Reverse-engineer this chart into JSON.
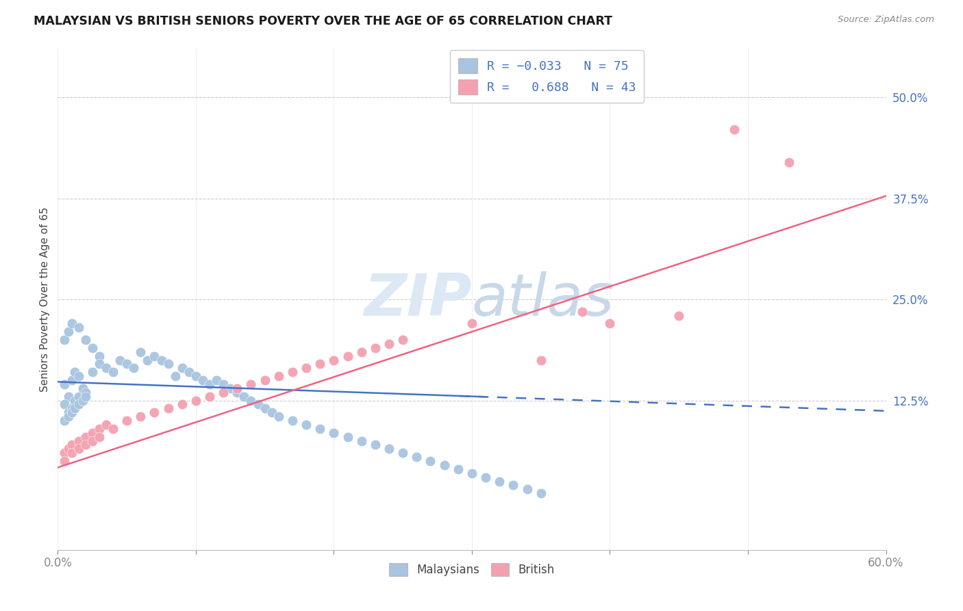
{
  "title": "MALAYSIAN VS BRITISH SENIORS POVERTY OVER THE AGE OF 65 CORRELATION CHART",
  "source": "Source: ZipAtlas.com",
  "ylabel": "Seniors Poverty Over the Age of 65",
  "ytick_labels": [
    "50.0%",
    "37.5%",
    "25.0%",
    "12.5%"
  ],
  "ytick_values": [
    0.5,
    0.375,
    0.25,
    0.125
  ],
  "xlim": [
    0.0,
    0.6
  ],
  "ylim": [
    -0.06,
    0.56
  ],
  "R_malaysian": -0.033,
  "N_malaysian": 75,
  "R_british": 0.688,
  "N_british": 43,
  "color_malaysian": "#a8c4e0",
  "color_british": "#f4a0b0",
  "color_line_malaysian": "#4472c4",
  "color_line_british": "#f06080",
  "watermark_zi": "ZIP",
  "watermark_atlas": "atlas",
  "watermark_color": "#dde8f5",
  "xtick_positions": [
    0.0,
    0.1,
    0.2,
    0.3,
    0.4,
    0.5,
    0.6
  ],
  "malaysian_x": [
    0.005,
    0.008,
    0.01,
    0.012,
    0.015,
    0.018,
    0.02,
    0.005,
    0.008,
    0.01,
    0.012,
    0.015,
    0.018,
    0.02,
    0.005,
    0.008,
    0.01,
    0.012,
    0.015,
    0.018,
    0.02,
    0.005,
    0.008,
    0.01,
    0.015,
    0.02,
    0.025,
    0.03,
    0.025,
    0.03,
    0.035,
    0.04,
    0.045,
    0.05,
    0.055,
    0.06,
    0.065,
    0.07,
    0.075,
    0.08,
    0.085,
    0.09,
    0.095,
    0.1,
    0.105,
    0.11,
    0.115,
    0.12,
    0.125,
    0.13,
    0.135,
    0.14,
    0.145,
    0.15,
    0.155,
    0.16,
    0.17,
    0.18,
    0.19,
    0.2,
    0.21,
    0.22,
    0.23,
    0.24,
    0.25,
    0.26,
    0.27,
    0.28,
    0.29,
    0.3,
    0.31,
    0.32,
    0.33,
    0.34,
    0.35
  ],
  "malaysian_y": [
    0.145,
    0.13,
    0.15,
    0.16,
    0.155,
    0.14,
    0.135,
    0.12,
    0.11,
    0.115,
    0.125,
    0.13,
    0.14,
    0.135,
    0.1,
    0.105,
    0.11,
    0.115,
    0.12,
    0.125,
    0.13,
    0.2,
    0.21,
    0.22,
    0.215,
    0.2,
    0.19,
    0.18,
    0.16,
    0.17,
    0.165,
    0.16,
    0.175,
    0.17,
    0.165,
    0.185,
    0.175,
    0.18,
    0.175,
    0.17,
    0.155,
    0.165,
    0.16,
    0.155,
    0.15,
    0.145,
    0.15,
    0.145,
    0.14,
    0.135,
    0.13,
    0.125,
    0.12,
    0.115,
    0.11,
    0.105,
    0.1,
    0.095,
    0.09,
    0.085,
    0.08,
    0.075,
    0.07,
    0.065,
    0.06,
    0.055,
    0.05,
    0.045,
    0.04,
    0.035,
    0.03,
    0.025,
    0.02,
    0.015,
    0.01
  ],
  "british_x": [
    0.005,
    0.008,
    0.01,
    0.015,
    0.02,
    0.025,
    0.03,
    0.035,
    0.005,
    0.01,
    0.015,
    0.02,
    0.025,
    0.03,
    0.04,
    0.05,
    0.06,
    0.07,
    0.08,
    0.09,
    0.1,
    0.11,
    0.12,
    0.13,
    0.14,
    0.15,
    0.16,
    0.17,
    0.18,
    0.19,
    0.2,
    0.21,
    0.22,
    0.23,
    0.24,
    0.25,
    0.3,
    0.35,
    0.38,
    0.4,
    0.45,
    0.49,
    0.53
  ],
  "british_y": [
    0.06,
    0.065,
    0.07,
    0.075,
    0.08,
    0.085,
    0.09,
    0.095,
    0.05,
    0.06,
    0.065,
    0.07,
    0.075,
    0.08,
    0.09,
    0.1,
    0.105,
    0.11,
    0.115,
    0.12,
    0.125,
    0.13,
    0.135,
    0.14,
    0.145,
    0.15,
    0.155,
    0.16,
    0.165,
    0.17,
    0.175,
    0.18,
    0.185,
    0.19,
    0.195,
    0.2,
    0.22,
    0.175,
    0.235,
    0.22,
    0.23,
    0.46,
    0.42
  ],
  "line_m_intercept": 0.148,
  "line_m_slope": -0.06,
  "line_b_intercept": 0.042,
  "line_b_slope": 0.56,
  "line_m_solid_end": 0.31,
  "line_m_dashed_start": 0.29
}
